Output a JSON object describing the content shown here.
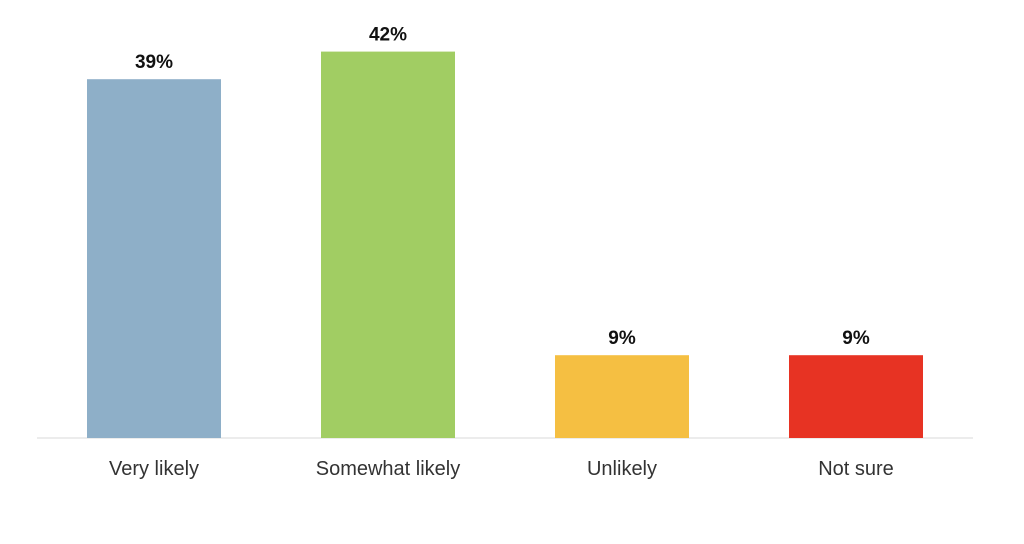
{
  "chart_data": {
    "type": "bar",
    "categories": [
      "Very likely",
      "Somewhat likely",
      "Unlikely",
      "Not sure"
    ],
    "values": [
      39,
      42,
      9,
      9
    ],
    "value_labels": [
      "39%",
      "42%",
      "9%",
      "9%"
    ],
    "unit": "%",
    "title": "",
    "xlabel": "",
    "ylabel": "",
    "ylim": [
      0,
      50
    ],
    "grid": false,
    "legend": "none",
    "colors": [
      "#8eafc8",
      "#a1cd63",
      "#f5bf42",
      "#e73323"
    ]
  }
}
